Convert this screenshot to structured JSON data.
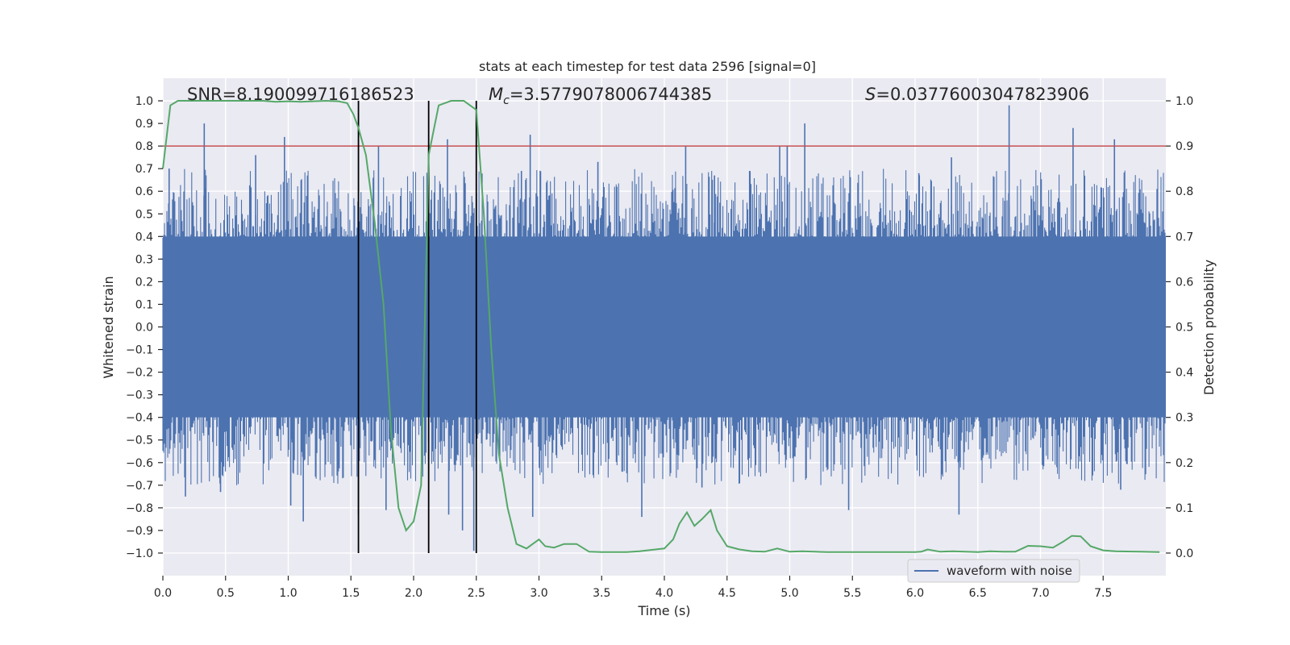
{
  "chart_data": {
    "type": "line",
    "title": "stats at each timestep for test data 2596 [signal=0]",
    "xlabel": "Time (s)",
    "ylabel_left": "Whitened strain",
    "ylabel_right": "Detection probability",
    "xlim": [
      0.0,
      8.0
    ],
    "ylim_left": [
      -1.1,
      1.1
    ],
    "ylim_right": [
      -0.05,
      1.05
    ],
    "x_ticks": [
      "0.0",
      "0.5",
      "1.0",
      "1.5",
      "2.0",
      "2.5",
      "3.0",
      "3.5",
      "4.0",
      "4.5",
      "5.0",
      "5.5",
      "6.0",
      "6.5",
      "7.0",
      "7.5"
    ],
    "y_left_ticks": [
      "1.0",
      "0.9",
      "0.8",
      "0.7",
      "0.6",
      "0.5",
      "0.4",
      "0.3",
      "0.2",
      "0.1",
      "0.0",
      "-0.1",
      "-0.2",
      "-0.3",
      "-0.4",
      "-0.5",
      "-0.6",
      "-0.7",
      "-0.8",
      "-0.9",
      "-1.0"
    ],
    "y_right_ticks": [
      "1.0",
      "0.9",
      "0.8",
      "0.7",
      "0.6",
      "0.5",
      "0.4",
      "0.3",
      "0.2",
      "0.1",
      "0.0"
    ],
    "annotations": {
      "snr": "SNR=8.190099716186523",
      "mc_symbol": "M",
      "mc_sub": "c",
      "mc_value": "=3.5779078006744385",
      "s_symbol": "S",
      "s_value": "=0.03776003047823906"
    },
    "legend": {
      "label": "waveform with noise",
      "position": "lower-right"
    },
    "threshold_probability": 0.9,
    "vertical_markers_s": [
      1.56,
      2.12,
      2.5
    ],
    "waveform": {
      "name": "waveform with noise",
      "color": "#4c72b0",
      "x_range": [
        0.0,
        8.0
      ],
      "core_amplitude": 0.4,
      "peak_upper": [
        [
          0.05,
          0.7
        ],
        [
          0.33,
          0.9
        ],
        [
          0.74,
          0.76
        ],
        [
          0.97,
          0.84
        ],
        [
          1.72,
          0.8
        ],
        [
          2.27,
          0.83
        ],
        [
          2.86,
          0.69
        ],
        [
          2.93,
          0.85
        ],
        [
          3.47,
          0.73
        ],
        [
          4.17,
          0.8
        ],
        [
          4.4,
          0.67
        ],
        [
          4.68,
          0.69
        ],
        [
          4.92,
          0.8
        ],
        [
          4.98,
          0.8
        ],
        [
          5.12,
          0.9
        ],
        [
          6.03,
          0.68
        ],
        [
          6.29,
          0.75
        ],
        [
          6.75,
          0.98
        ],
        [
          7.26,
          0.88
        ],
        [
          7.59,
          0.83
        ],
        [
          7.93,
          0.61
        ]
      ],
      "peak_lower": [
        [
          0.18,
          -0.75
        ],
        [
          0.46,
          -0.73
        ],
        [
          1.02,
          -0.79
        ],
        [
          1.12,
          -0.86
        ],
        [
          1.56,
          -0.83
        ],
        [
          1.78,
          -0.81
        ],
        [
          2.28,
          -0.83
        ],
        [
          2.39,
          -0.9
        ],
        [
          2.48,
          -0.99
        ],
        [
          2.95,
          -0.84
        ],
        [
          3.82,
          -0.84
        ],
        [
          4.3,
          -0.71
        ],
        [
          5.47,
          -0.81
        ],
        [
          6.35,
          -0.83
        ],
        [
          7.64,
          -0.72
        ]
      ]
    },
    "detection_probability": {
      "name": "detection probability",
      "color": "#55a868",
      "x": [
        0.0,
        0.06,
        0.12,
        0.2,
        0.3,
        0.4,
        0.5,
        0.6,
        0.7,
        0.8,
        0.9,
        1.0,
        1.1,
        1.2,
        1.3,
        1.4,
        1.47,
        1.52,
        1.56,
        1.62,
        1.69,
        1.76,
        1.82,
        1.88,
        1.94,
        2.0,
        2.06,
        2.12,
        2.2,
        2.3,
        2.4,
        2.45,
        2.5,
        2.56,
        2.62,
        2.68,
        2.75,
        2.82,
        2.9,
        2.95,
        3.0,
        3.05,
        3.12,
        3.2,
        3.3,
        3.4,
        3.5,
        3.6,
        3.7,
        3.8,
        3.9,
        4.0,
        4.07,
        4.12,
        4.18,
        4.24,
        4.3,
        4.37,
        4.42,
        4.5,
        4.6,
        4.7,
        4.8,
        4.9,
        5.0,
        5.1,
        5.2,
        5.3,
        5.5,
        5.7,
        5.9,
        6.0,
        6.05,
        6.1,
        6.2,
        6.3,
        6.4,
        6.5,
        6.6,
        6.7,
        6.8,
        6.9,
        7.0,
        7.1,
        7.18,
        7.25,
        7.32,
        7.4,
        7.5,
        7.6,
        7.8,
        7.95
      ],
      "y": [
        0.85,
        0.99,
        1.0,
        1.0,
        1.0,
        1.0,
        1.0,
        1.0,
        1.0,
        1.0,
        0.998,
        0.999,
        0.998,
        0.999,
        1.0,
        0.999,
        0.995,
        0.97,
        0.94,
        0.88,
        0.73,
        0.55,
        0.27,
        0.1,
        0.05,
        0.07,
        0.15,
        0.88,
        0.99,
        1.0,
        1.0,
        0.99,
        0.98,
        0.75,
        0.45,
        0.22,
        0.1,
        0.02,
        0.01,
        0.02,
        0.03,
        0.015,
        0.012,
        0.02,
        0.02,
        0.003,
        0.002,
        0.002,
        0.002,
        0.004,
        0.007,
        0.01,
        0.03,
        0.065,
        0.09,
        0.06,
        0.075,
        0.095,
        0.05,
        0.015,
        0.008,
        0.004,
        0.003,
        0.01,
        0.003,
        0.004,
        0.003,
        0.002,
        0.002,
        0.002,
        0.002,
        0.002,
        0.003,
        0.008,
        0.003,
        0.004,
        0.003,
        0.002,
        0.004,
        0.003,
        0.003,
        0.016,
        0.015,
        0.012,
        0.025,
        0.038,
        0.037,
        0.015,
        0.006,
        0.004,
        0.003,
        0.002
      ]
    }
  }
}
